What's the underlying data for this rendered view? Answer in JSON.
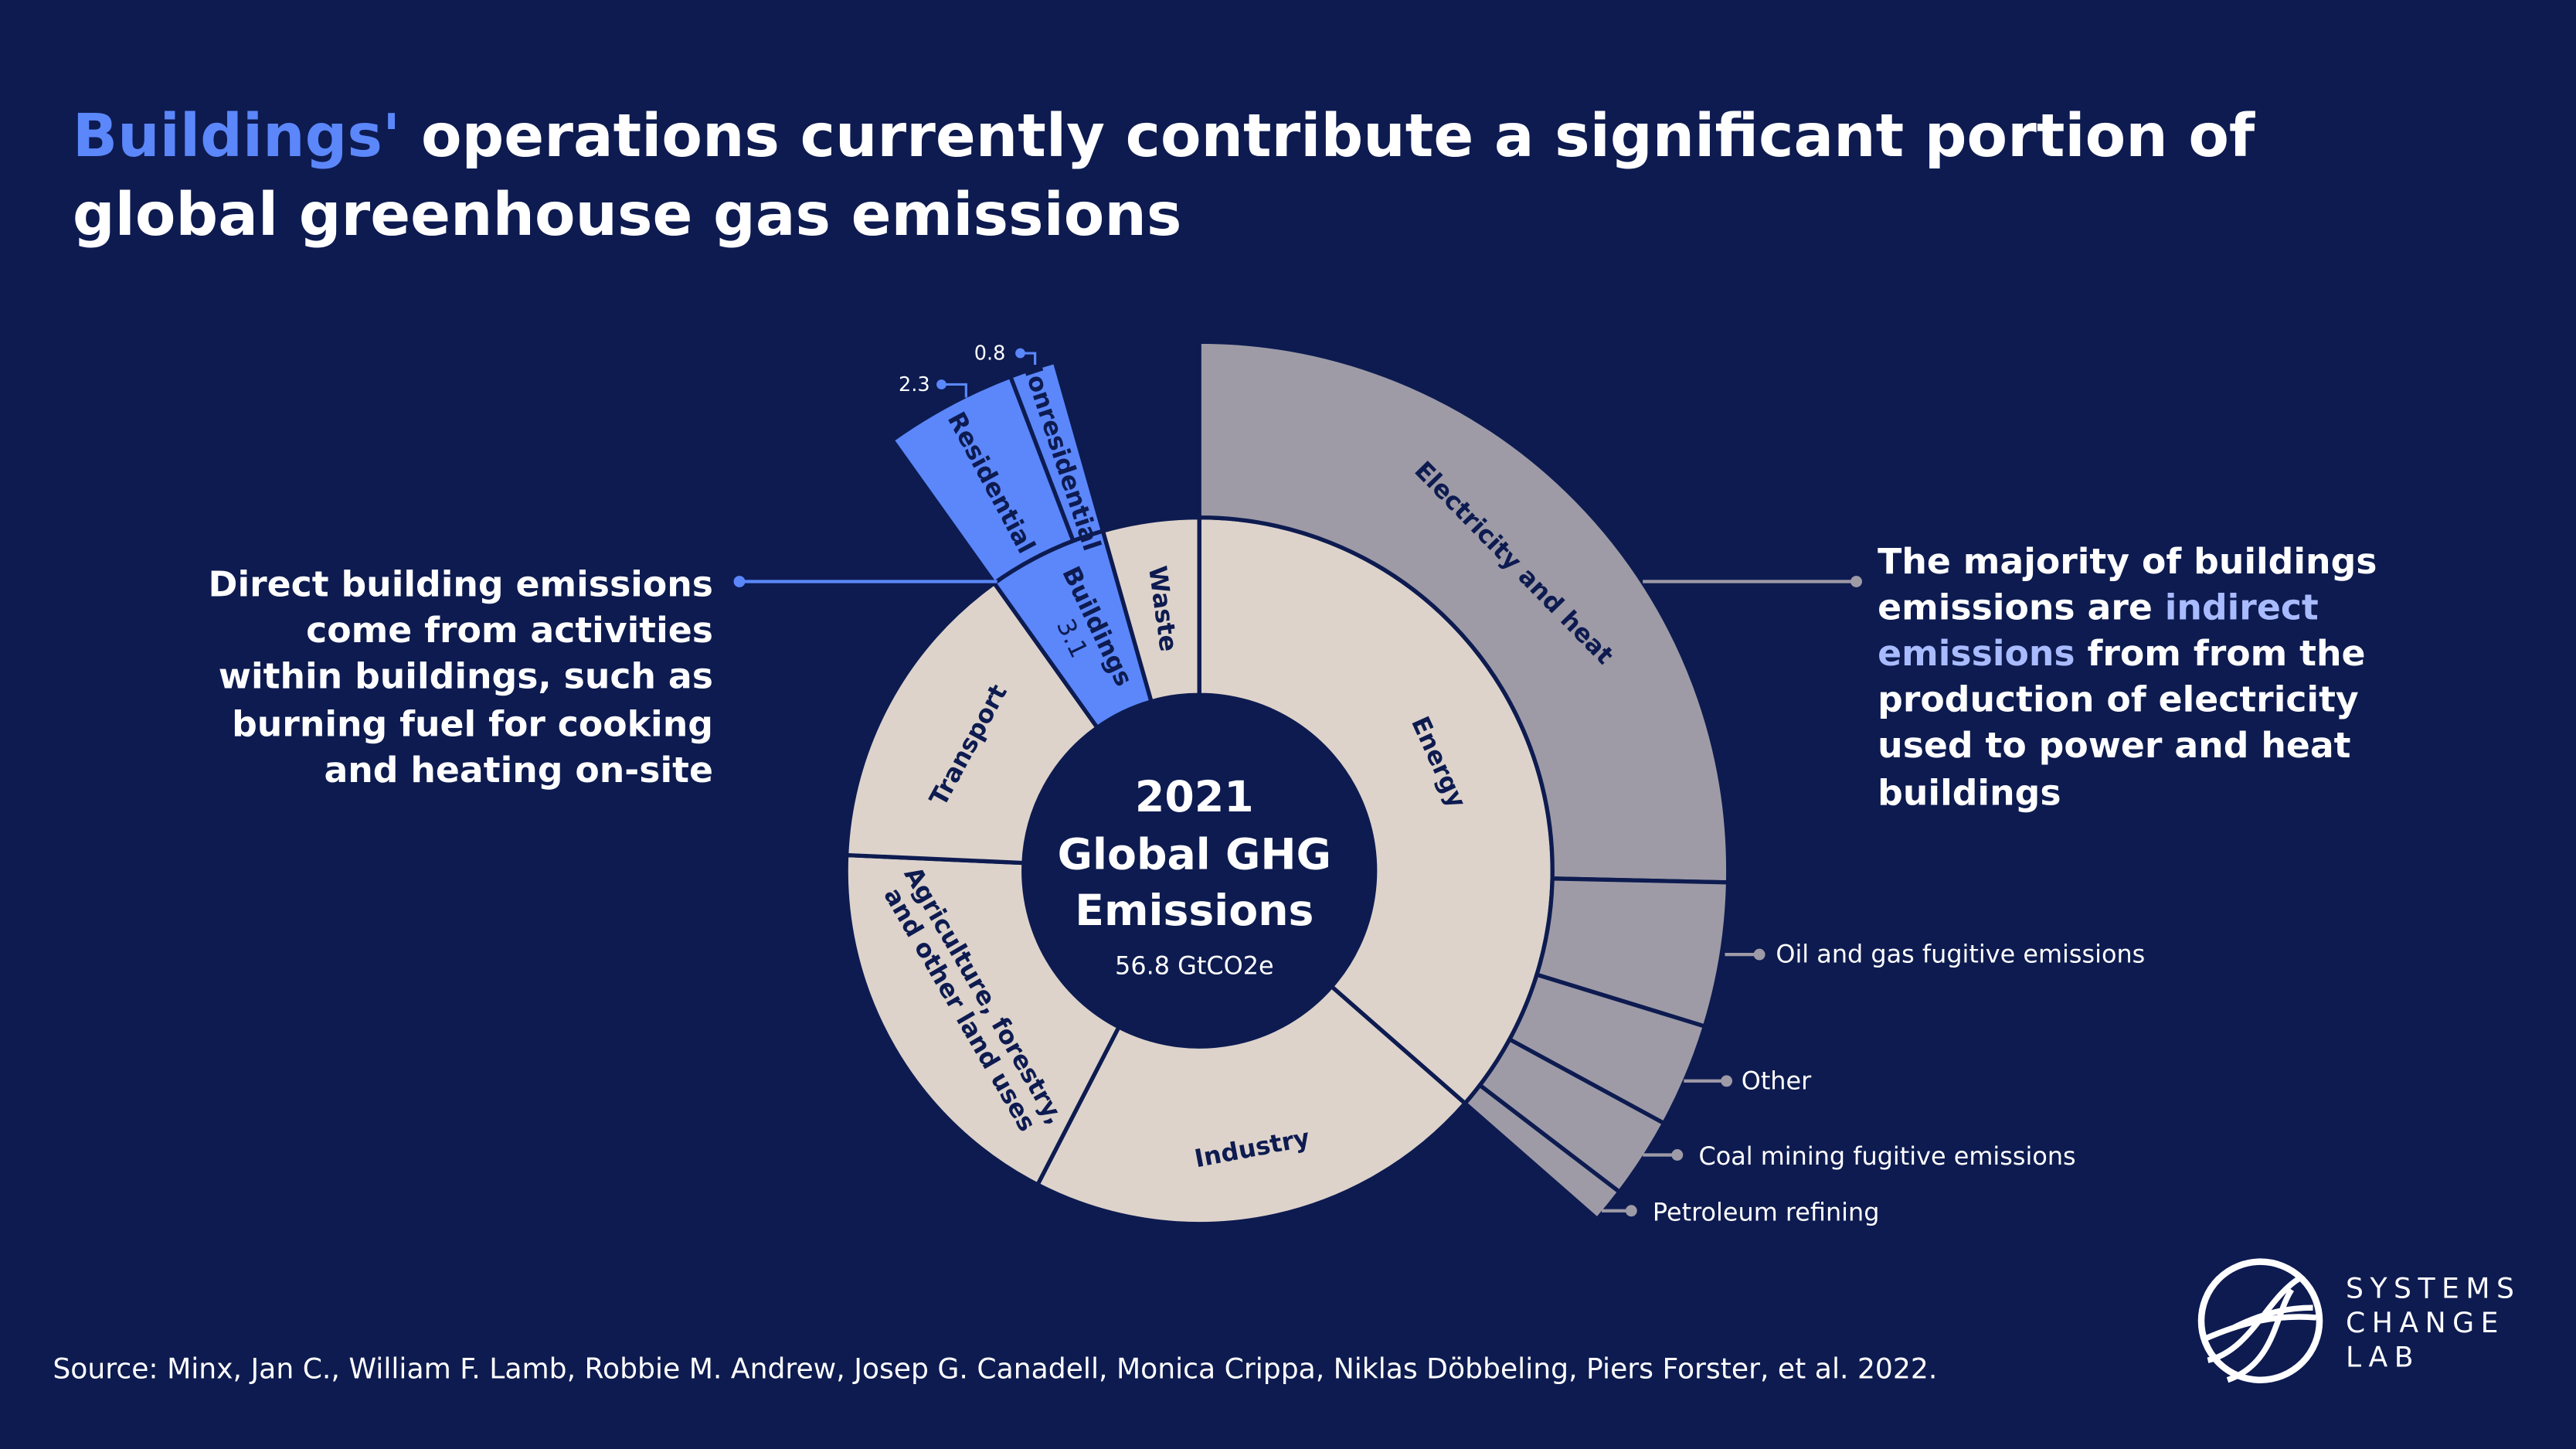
{
  "title": {
    "highlight": "Buildings'",
    "line1_rest": " operations currently contribute a significant portion of",
    "line2": "global greenhouse gas emissions"
  },
  "left_note": {
    "line1_highlight": "Direct building emissions",
    "lines": [
      "come from activities",
      "within buildings, such as",
      "burning fuel for cooking",
      "and heating on-site"
    ]
  },
  "right_note": {
    "line1": "The majority of buildings",
    "line2_pre": "emissions are ",
    "line2_hl": "indirect",
    "line3_hl": "emissions",
    "line3_post": " from from the",
    "lines": [
      "production of electricity",
      "used to power and heat",
      "buildings"
    ]
  },
  "center": {
    "year": "2021",
    "line1": "Global GHG",
    "line2": "Emissions",
    "total": "56.8 GtCO2e"
  },
  "source": "Source: Minx, Jan C., William F. Lamb, Robbie M. Andrew, Josep G. Canadell, Monica Crippa, Niklas Döbbeling, Piers Forster, et al. 2022.",
  "logo": {
    "lines": [
      "SYSTEMS",
      "CHANGE",
      "LAB"
    ]
  },
  "colors": {
    "background": "#0d1b50",
    "sector": "#ddd3cb",
    "energy_sub": "#9e9ba7",
    "buildings": "#5b87fb",
    "text_dark": "#0d1b50"
  },
  "chart_data": {
    "type": "sunburst",
    "unit": "GtCO2e",
    "total": 56.8,
    "sectors": [
      {
        "name": "Energy",
        "value": 20.7,
        "children": [
          {
            "name": "Electricity and heat",
            "value": 14.4
          },
          {
            "name": "Oil and gas fugitive emissions",
            "value": 2.5
          },
          {
            "name": "Other",
            "value": 1.8
          },
          {
            "name": "Coal mining fugitive emissions",
            "value": 1.4
          },
          {
            "name": "Petroleum refining",
            "value": 0.6
          }
        ]
      },
      {
        "name": "Industry",
        "value": 12.0
      },
      {
        "name": "Agriculture, forestry, and other land uses",
        "label_lines": [
          "Agriculture, forestry,",
          "and other land uses"
        ],
        "value": 10.3
      },
      {
        "name": "Transport",
        "value": 8.2
      },
      {
        "name": "Buildings",
        "value": 3.1,
        "value_label": "3.1",
        "children": [
          {
            "name": "Residential",
            "value": 2.3,
            "value_label": "2.3"
          },
          {
            "name": "Nonresidential",
            "value": 0.8,
            "value_label": "0.8"
          }
        ]
      },
      {
        "name": "Waste",
        "value": 2.5
      }
    ]
  }
}
